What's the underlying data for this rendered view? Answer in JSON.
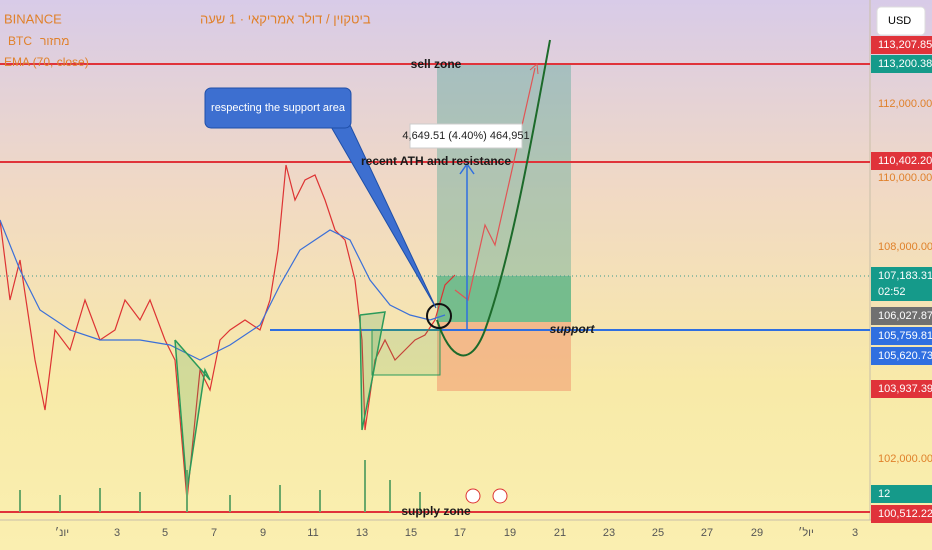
{
  "header": {
    "exchange": "BINANCE",
    "title": "ביטקוין / דולר אמריקאי · 1 שעה",
    "symbol": "BTC",
    "volume_label": "מחזור",
    "ema_label": "EMA (70, close)"
  },
  "currency": "USD",
  "price_scale": {
    "labels": [
      "113,207.85",
      "113,200.38",
      "112,000.00",
      "110,402.20",
      "110,000.00",
      "108,000.00",
      "107,183.31",
      "02:52",
      "106,027.87",
      "105,759.81",
      "105,620.73",
      "103,937.39",
      "102,000.00",
      "12",
      "100,512.22"
    ]
  },
  "time_scale": {
    "labels": [
      "יונ׳",
      "3",
      "5",
      "7",
      "9",
      "11",
      "13",
      "15",
      "17",
      "19",
      "21",
      "23",
      "25",
      "27",
      "29",
      "יול׳",
      "3"
    ]
  },
  "annotations": {
    "sell_zone": "sell zone",
    "resistance": "recent  ATH and resistance",
    "support": "support",
    "supply_zone": "supply zone",
    "callout": "respecting the support area",
    "measure": "4,649.51 (4.40%) 464,951"
  }
}
